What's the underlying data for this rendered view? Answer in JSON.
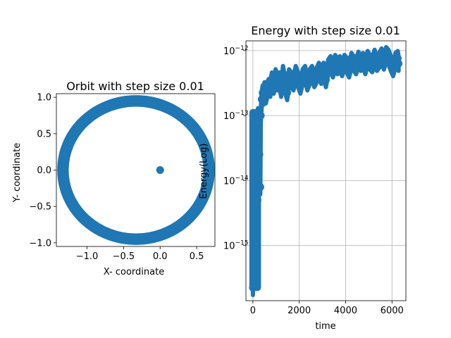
{
  "chart_data": [
    {
      "type": "scatter",
      "title": "Orbit with step size 0.01",
      "xlabel": "X- coordinate",
      "ylabel": "Y- coordinate",
      "xlim": [
        -1.42,
        0.75
      ],
      "ylim": [
        -1.05,
        1.05
      ],
      "xticks": [
        -1.0,
        -0.5,
        0.0,
        0.5
      ],
      "xtick_labels": [
        "−1.0",
        "−0.5",
        "0.0",
        "0.5"
      ],
      "yticks": [
        -1.0,
        -0.5,
        0.0,
        0.5,
        1.0
      ],
      "ytick_labels": [
        "−1.0",
        "−0.5",
        "0.0",
        "0.5",
        "1.0"
      ],
      "grid": false,
      "color": "#1f77b4",
      "series": [
        {
          "kind": "ellipse",
          "center": [
            -0.33,
            0.0
          ],
          "radius_x": 1.0,
          "radius_y": 0.95,
          "band": 0.045
        },
        {
          "kind": "point",
          "x": 0.0,
          "y": 0.0
        }
      ]
    },
    {
      "type": "scatter",
      "title": "Energy with step size 0.01",
      "xlabel": "time",
      "ylabel": "Energy(Log)",
      "xlim": [
        -300,
        6600
      ],
      "ylog": true,
      "ylim_log10": [
        -15.85,
        -11.85
      ],
      "xticks": [
        0,
        2000,
        4000,
        6000
      ],
      "xtick_labels": [
        "0",
        "2000",
        "4000",
        "6000"
      ],
      "yticks_log10": [
        -15,
        -14,
        -13,
        -12
      ],
      "ytick_base": "10",
      "ytick_exponents": [
        "−15",
        "−14",
        "−13",
        "−12"
      ],
      "grid": true,
      "color": "#1f77b4",
      "data": [
        [
          0,
          -15.65
        ],
        [
          30,
          -15.2
        ],
        [
          50,
          -15.05
        ],
        [
          60,
          -14.0
        ],
        [
          80,
          -13.3
        ],
        [
          100,
          -13.05
        ],
        [
          120,
          -13.9
        ],
        [
          140,
          -14.6
        ],
        [
          160,
          -13.1
        ],
        [
          180,
          -13.8
        ],
        [
          200,
          -14.3
        ],
        [
          220,
          -13.0
        ],
        [
          250,
          -13.2
        ],
        [
          280,
          -13.6
        ],
        [
          300,
          -13.0
        ],
        [
          320,
          -14.1
        ],
        [
          340,
          -13.0
        ],
        [
          380,
          -12.75
        ],
        [
          420,
          -12.65
        ],
        [
          460,
          -12.72
        ],
        [
          500,
          -12.6
        ],
        [
          560,
          -12.7
        ],
        [
          620,
          -12.6
        ],
        [
          680,
          -12.55
        ],
        [
          750,
          -12.6
        ],
        [
          820,
          -12.45
        ],
        [
          900,
          -12.55
        ],
        [
          980,
          -12.4
        ],
        [
          1060,
          -12.5
        ],
        [
          1140,
          -12.45
        ],
        [
          1220,
          -12.6
        ],
        [
          1300,
          -12.35
        ],
        [
          1400,
          -12.55
        ],
        [
          1480,
          -12.65
        ],
        [
          1560,
          -12.4
        ],
        [
          1650,
          -12.45
        ],
        [
          1750,
          -12.5
        ],
        [
          1850,
          -12.35
        ],
        [
          1950,
          -12.45
        ],
        [
          2050,
          -12.55
        ],
        [
          2150,
          -12.4
        ],
        [
          2250,
          -12.35
        ],
        [
          2350,
          -12.5
        ],
        [
          2450,
          -12.4
        ],
        [
          2550,
          -12.35
        ],
        [
          2650,
          -12.45
        ],
        [
          2750,
          -12.38
        ],
        [
          2850,
          -12.3
        ],
        [
          2950,
          -12.4
        ],
        [
          3050,
          -12.3
        ],
        [
          3150,
          -12.45
        ],
        [
          3250,
          -12.25
        ],
        [
          3350,
          -12.2
        ],
        [
          3450,
          -12.3
        ],
        [
          3550,
          -12.18
        ],
        [
          3650,
          -12.25
        ],
        [
          3750,
          -12.2
        ],
        [
          3850,
          -12.28
        ],
        [
          3950,
          -12.18
        ],
        [
          4050,
          -12.22
        ],
        [
          4150,
          -12.3
        ],
        [
          4250,
          -12.15
        ],
        [
          4350,
          -12.2
        ],
        [
          4450,
          -12.25
        ],
        [
          4550,
          -12.13
        ],
        [
          4650,
          -12.2
        ],
        [
          4750,
          -12.15
        ],
        [
          4850,
          -12.25
        ],
        [
          4950,
          -12.12
        ],
        [
          5050,
          -12.18
        ],
        [
          5150,
          -12.22
        ],
        [
          5250,
          -12.1
        ],
        [
          5350,
          -12.2
        ],
        [
          5450,
          -12.15
        ],
        [
          5550,
          -12.08
        ],
        [
          5650,
          -12.18
        ],
        [
          5750,
          -12.06
        ],
        [
          5850,
          -12.1
        ],
        [
          5950,
          -12.2
        ],
        [
          6050,
          -12.28
        ],
        [
          6150,
          -12.15
        ],
        [
          6250,
          -12.12
        ],
        [
          6283,
          -12.2
        ]
      ],
      "early_band": {
        "x_max": 350,
        "y_min_log10": -15.7,
        "y_max_log10": -12.9
      },
      "band_halfwidth_log10": 0.07
    }
  ]
}
